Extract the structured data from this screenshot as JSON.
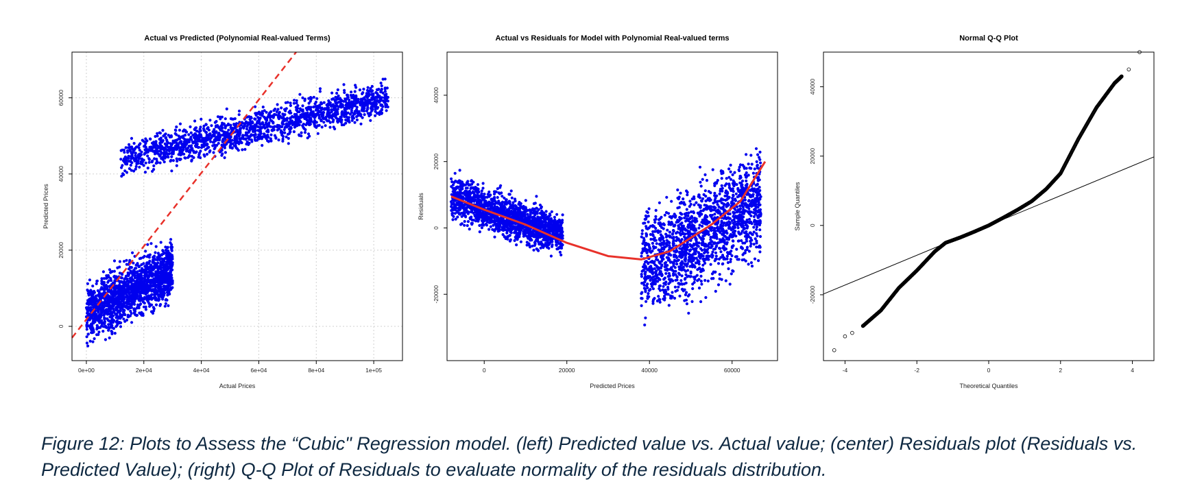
{
  "caption": "Figure 12: Plots to Assess the “Cubic\" Regression model. (left) Predicted value vs. Actual value; (center) Residuals plot (Residuals vs. Predicted Value); (right) Q-Q Plot of Residuals to evaluate normality of the residuals distribution.",
  "colors": {
    "points": "#0000ee",
    "fit_line": "#e8312a",
    "qq_points": "#000000",
    "qq_line": "#000000"
  },
  "chart_data": [
    {
      "type": "scatter",
      "title": "Actual vs Predicted (Polynomial Real-valued Terms)",
      "xlabel": "Actual Prices",
      "ylabel": "Predicted Prices",
      "xlim": [
        -5000,
        110000
      ],
      "ylim": [
        -9000,
        72000
      ],
      "xticks": [
        0,
        20000,
        40000,
        60000,
        80000,
        100000
      ],
      "xtick_labels": [
        "0e+00",
        "2e+04",
        "4e+04",
        "6e+04",
        "8e+04",
        "1e+05"
      ],
      "yticks": [
        0,
        20000,
        40000,
        60000
      ],
      "ytick_labels": [
        "0",
        "20000",
        "40000",
        "60000"
      ],
      "grid": true,
      "reference_line": {
        "style": "dashed",
        "color": "#e8312a",
        "x": [
          -5000,
          73000
        ],
        "y": [
          -3000,
          72000
        ]
      },
      "clusters": [
        {
          "x_range": [
            0,
            30000
          ],
          "y_center_at_x_min": 3000,
          "y_center_at_x_max": 15000,
          "y_spread": 7000
        },
        {
          "x_range": [
            12000,
            105000
          ],
          "y_center_at_x_min": 44000,
          "y_center_at_x_max": 60000,
          "y_spread": 4500
        }
      ]
    },
    {
      "type": "scatter",
      "title": "Actual vs Residuals for Model with Polynomial Real-valued terms",
      "xlabel": "Predicted Prices",
      "ylabel": "Residuals",
      "xlim": [
        -9000,
        71000
      ],
      "ylim": [
        -40000,
        53000
      ],
      "xticks": [
        0,
        20000,
        40000,
        60000
      ],
      "xtick_labels": [
        "0",
        "20000",
        "40000",
        "60000"
      ],
      "yticks": [
        -20000,
        0,
        20000,
        40000
      ],
      "ytick_labels": [
        "-20000",
        "0",
        "20000",
        "40000"
      ],
      "grid": false,
      "fit_curve": {
        "color": "#e8312a",
        "x": [
          -8000,
          0,
          10000,
          20000,
          30000,
          38000,
          45000,
          55000,
          62000,
          68000
        ],
        "y": [
          9500,
          5500,
          1000,
          -4500,
          -8500,
          -9500,
          -7000,
          1000,
          8000,
          20000
        ]
      },
      "clusters": [
        {
          "x_range": [
            -8000,
            19000
          ],
          "y_center_at_x_min": 9500,
          "y_center_at_x_max": -2500,
          "y_spread": 6000
        },
        {
          "x_range": [
            38000,
            67000
          ],
          "y_center_at_x_min": -12000,
          "y_center_at_x_max": 8000,
          "y_spread": 15000
        }
      ]
    },
    {
      "type": "scatter",
      "title": "Normal Q-Q Plot",
      "xlabel": "Theoretical Quantiles",
      "ylabel": "Sample Quantiles",
      "xlim": [
        -4.6,
        4.6
      ],
      "ylim": [
        -39000,
        50000
      ],
      "xticks": [
        -4,
        -2,
        0,
        2,
        4
      ],
      "xtick_labels": [
        "-4",
        "-2",
        "0",
        "2",
        "4"
      ],
      "yticks": [
        -20000,
        0,
        20000,
        40000
      ],
      "ytick_labels": [
        "-20000",
        "0",
        "20000",
        "40000"
      ],
      "grid": false,
      "qq_line": {
        "intercept": 0,
        "slope": 4300
      },
      "qq_points": {
        "x": [
          -4.3,
          -4.0,
          -3.8,
          -3.5,
          -3.0,
          -2.5,
          -2.0,
          -1.5,
          -1.2,
          -0.8,
          -0.4,
          0,
          0.4,
          0.8,
          1.2,
          1.6,
          2.0,
          2.5,
          3.0,
          3.5,
          3.7,
          3.9,
          4.2
        ],
        "y": [
          -36000,
          -32000,
          -31000,
          -29000,
          -24500,
          -18000,
          -13000,
          -7500,
          -5000,
          -3500,
          -1800,
          0,
          2200,
          4500,
          7000,
          10500,
          15000,
          25000,
          34000,
          41000,
          43000,
          45000,
          50000
        ]
      }
    }
  ]
}
